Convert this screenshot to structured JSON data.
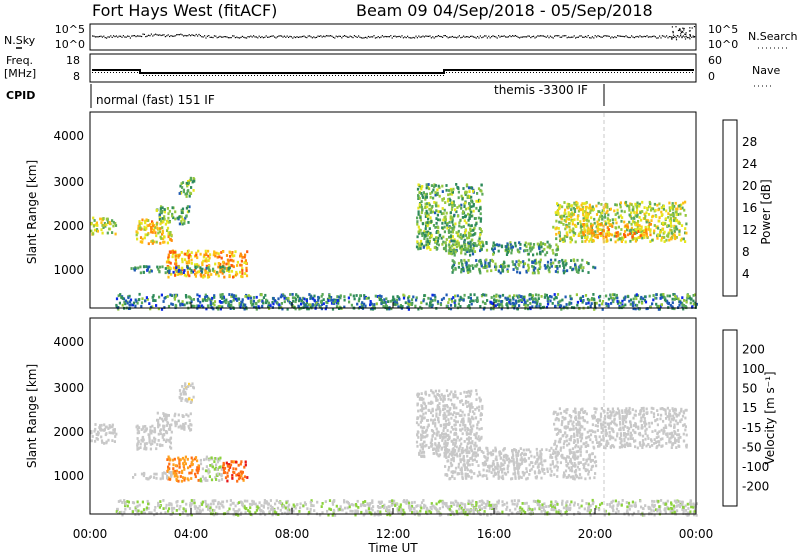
{
  "header": {
    "radar_title": "Fort Hays West (fitACF)",
    "beam_info": "Beam 09  04/Sep/2018 - 05/Sep/2018"
  },
  "labels": {
    "nsky": "N.Sky",
    "nsearch": "N.Search",
    "freq_line1": "Freq.",
    "freq_line2": "[MHz]",
    "nave": "Nave",
    "cpid": "CPID",
    "cpid_mode_1": "normal (fast) 151 IF",
    "cpid_mode_2": "themis -3300 IF",
    "x_axis": "Time UT",
    "y_axis_range": "Slant Range [km]",
    "power_bar_label": "Power [dB]",
    "velocity_bar_label": "Velocity [m s⁻¹]"
  },
  "ticks": {
    "nsky_left": [
      "10^5",
      "10^0"
    ],
    "nsearch_right": [
      "10^5",
      "10^0"
    ],
    "freq_left": [
      "18",
      "8"
    ],
    "nave_right": [
      "60",
      "0"
    ],
    "range": [
      "4000",
      "3000",
      "2000",
      "1000"
    ],
    "time": [
      "00:00",
      "04:00",
      "08:00",
      "12:00",
      "16:00",
      "20:00",
      "00:00"
    ],
    "power": [
      "28",
      "24",
      "20",
      "16",
      "12",
      "8",
      "4"
    ],
    "velocity": [
      "200",
      "100",
      "50",
      "15",
      "-15",
      "-50",
      "-100",
      "-200"
    ]
  },
  "colors": {
    "power": [
      "#0a28e6",
      "#1e5ab4",
      "#2d8a5a",
      "#5aa85a",
      "#96c83c",
      "#e6e61e",
      "#ffbe14",
      "#ff8c0a",
      "#ff5a0a",
      "#e61414"
    ],
    "velocity": [
      "#2846b4",
      "#1e6e3c",
      "#3c9646",
      "#8cd23c",
      "#c8c8c8",
      "#c8c8c8",
      "#ffd23c",
      "#ffa01e",
      "#ff6e14",
      "#e61414"
    ]
  },
  "chart_data": [
    {
      "type": "heatmap",
      "name": "power",
      "x": {
        "label": "Time UT",
        "range_hours": [
          0,
          24
        ],
        "ticks": [
          "00:00",
          "04:00",
          "08:00",
          "12:00",
          "16:00",
          "20:00",
          "00:00"
        ]
      },
      "y": {
        "label": "Slant Range [km]",
        "range_km": [
          180,
          4600
        ],
        "ticks": [
          1000,
          2000,
          3000,
          4000
        ]
      },
      "colorbar": {
        "label": "Power [dB]",
        "range": [
          0,
          32
        ],
        "ticks": [
          4,
          8,
          12,
          16,
          20,
          24,
          28
        ]
      },
      "regions": [
        {
          "t": [
            0.0,
            1.0
          ],
          "r": [
            1850,
            2250
          ],
          "value": 16
        },
        {
          "t": [
            1.8,
            3.2
          ],
          "r": [
            1650,
            2200
          ],
          "value": 20
        },
        {
          "t": [
            2.6,
            3.9
          ],
          "r": [
            2100,
            2500
          ],
          "value": 12
        },
        {
          "t": [
            3.5,
            4.1
          ],
          "r": [
            2700,
            3150
          ],
          "value": 12
        },
        {
          "t": [
            3.0,
            6.2
          ],
          "r": [
            900,
            1500
          ],
          "value": 22
        },
        {
          "t": [
            1.6,
            5.5
          ],
          "r": [
            1000,
            1150
          ],
          "value": 8
        },
        {
          "t": [
            12.9,
            15.5
          ],
          "r": [
            1500,
            3000
          ],
          "value": 12
        },
        {
          "t": [
            14.0,
            18.5
          ],
          "r": [
            1400,
            1700
          ],
          "value": 10
        },
        {
          "t": [
            14.3,
            20.0
          ],
          "r": [
            1000,
            1300
          ],
          "value": 10
        },
        {
          "t": [
            18.3,
            23.6
          ],
          "r": [
            1700,
            2600
          ],
          "value": 16
        },
        {
          "t": [
            19.3,
            22.2
          ],
          "r": [
            1800,
            2100
          ],
          "value": 22
        },
        {
          "t": [
            1.0,
            24.0
          ],
          "r": [
            180,
            520
          ],
          "value": 8
        }
      ]
    },
    {
      "type": "heatmap",
      "name": "velocity",
      "x": {
        "label": "Time UT",
        "range_hours": [
          0,
          24
        ],
        "ticks": [
          "00:00",
          "04:00",
          "08:00",
          "12:00",
          "16:00",
          "20:00",
          "00:00"
        ]
      },
      "y": {
        "label": "Slant Range [km]",
        "range_km": [
          180,
          4600
        ],
        "ticks": [
          1000,
          2000,
          3000,
          4000
        ]
      },
      "colorbar": {
        "label": "Velocity [m s⁻¹]",
        "range": [
          -250,
          250
        ],
        "ticks": [
          200,
          100,
          50,
          15,
          -15,
          -50,
          -100,
          -200
        ]
      },
      "regions": [
        {
          "t": [
            0.0,
            1.0
          ],
          "r": [
            1800,
            2250
          ],
          "value": 0
        },
        {
          "t": [
            1.8,
            3.2
          ],
          "r": [
            1650,
            2200
          ],
          "value": 0
        },
        {
          "t": [
            2.6,
            4.0
          ],
          "r": [
            2100,
            2500
          ],
          "value": 0
        },
        {
          "t": [
            3.5,
            4.1
          ],
          "r": [
            2700,
            3150
          ],
          "value": -20
        },
        {
          "t": [
            3.0,
            4.3
          ],
          "r": [
            950,
            1500
          ],
          "value": -150
        },
        {
          "t": [
            4.3,
            5.2
          ],
          "r": [
            950,
            1500
          ],
          "value": 40
        },
        {
          "t": [
            5.2,
            6.2
          ],
          "r": [
            950,
            1400
          ],
          "value": -180
        },
        {
          "t": [
            1.6,
            3.2
          ],
          "r": [
            1000,
            1150
          ],
          "value": 0
        },
        {
          "t": [
            12.9,
            15.5
          ],
          "r": [
            1500,
            3000
          ],
          "value": 0
        },
        {
          "t": [
            14.0,
            20.0
          ],
          "r": [
            1000,
            1700
          ],
          "value": 0
        },
        {
          "t": [
            18.3,
            23.6
          ],
          "r": [
            1700,
            2600
          ],
          "value": 0
        },
        {
          "t": [
            1.0,
            24.0
          ],
          "r": [
            180,
            520
          ],
          "value": 30
        }
      ]
    }
  ]
}
